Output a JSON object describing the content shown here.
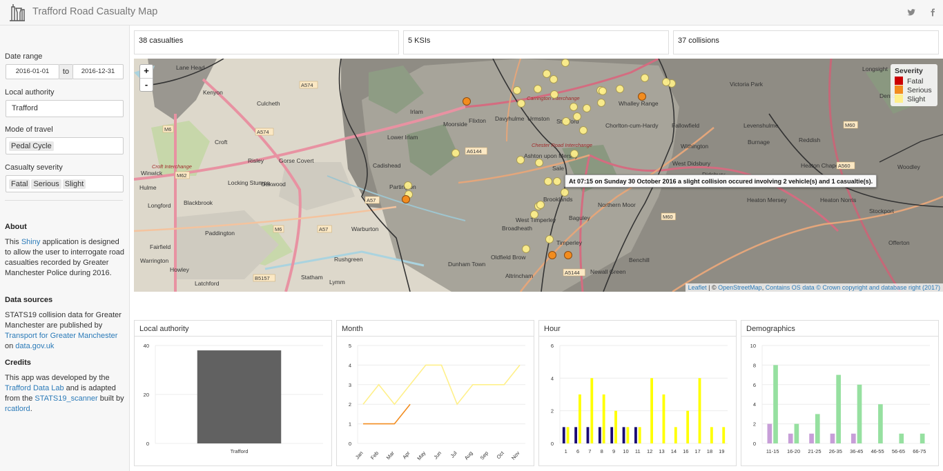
{
  "app": {
    "title": "Trafford Road Casualty Map",
    "logo_icon": "lab-flask-logo-icon",
    "social": [
      "twitter-icon",
      "facebook-icon"
    ]
  },
  "sidebar": {
    "date_range": {
      "label": "Date range",
      "from": "2016-01-01",
      "sep": "to",
      "to": "2016-12-31"
    },
    "local_authority": {
      "label": "Local authority",
      "value": "Trafford"
    },
    "mode": {
      "label": "Mode of travel",
      "value": "Pedal Cycle"
    },
    "severity": {
      "label": "Casualty severity",
      "chips": [
        "Fatal",
        "Serious",
        "Slight"
      ]
    },
    "about": {
      "heading": "About",
      "t1": "This ",
      "link1": "Shiny",
      "t2": " application is designed to allow the user to interrogate road casualties recorded by Greater Manchester Police during 2016."
    },
    "sources": {
      "heading": "Data sources",
      "t1": "STATS19 collision data for Greater Manchester are published by ",
      "link1": "Transport for Greater Manchester",
      "t2": " on ",
      "link2": "data.gov.uk"
    },
    "credits": {
      "heading": "Credits",
      "t1": "This app was developed by the ",
      "link1": "Trafford Data Lab",
      "t2": " and is adapted from the ",
      "link2": "STATS19_scanner",
      "t3": " built by ",
      "link3": "rcatlord",
      "t4": "."
    }
  },
  "stats": {
    "casualties": "38 casualties",
    "ksi": "5 KSIs",
    "collisions": "37 collisions"
  },
  "map": {
    "zoom_in": "+",
    "zoom_out": "-",
    "legend": {
      "title": "Severity",
      "items": [
        {
          "label": "Fatal",
          "color": "#cc0000"
        },
        {
          "label": "Serious",
          "color": "#f28c1e"
        },
        {
          "label": "Slight",
          "color": "#fff08a"
        }
      ]
    },
    "tooltip": "At 07:15 on Sunday 30 October 2016 a slight collision occured involving 2 vehicle(s) and 1 casualtie(s).",
    "attribution": {
      "leaflet": "Leaflet",
      "sep": " | © ",
      "osm": "OpenStreetMap",
      "comma": ", ",
      "os": "Contains OS data © Crown copyright and database right (2017)"
    },
    "place_labels": [
      "Kenyon",
      "Culcheth",
      "Croft",
      "Risley",
      "Gorse Covert",
      "Winwick",
      "Hulme",
      "Locking Stumps",
      "Oakwood",
      "Longford",
      "Blackbrook",
      "Fairfield",
      "Paddington",
      "Warrington",
      "Howley",
      "Latchford",
      "Statham",
      "Lymm",
      "Rushgreen",
      "Warburton",
      "Dunham Town",
      "Oldfield Brow",
      "Altrincham",
      "Cadishead",
      "Partington",
      "Lower Irlam",
      "Irlam",
      "Moorside",
      "Flixton",
      "Davyhulme",
      "Urmston",
      "Stretford",
      "Ashton upon Mersey",
      "Sale",
      "Brooklands",
      "Timperley",
      "West Timperley",
      "Broadheath",
      "Baguley",
      "Northern Moor",
      "Newall Green",
      "Benchill",
      "Chorlton-cum-Hardy",
      "Whalley Range",
      "Fallowfield",
      "Withington",
      "Burnage",
      "Levenshulme",
      "Reddish",
      "West Didsbury",
      "Didsbury",
      "Heaton Chapel",
      "Heaton Mersey",
      "Heaton Norris",
      "Stockport",
      "Offerton",
      "Victoria Park",
      "Denton",
      "Woodley",
      "Longsight",
      "Lane Head",
      "Croft Interchange",
      "Carrington Interchange",
      "Chester Road Interchange"
    ],
    "road_labels": [
      "A574",
      "A574",
      "M62",
      "M6",
      "M60",
      "A6144",
      "A57",
      "A57",
      "M6",
      "A5144",
      "B5157",
      "M60",
      "A560"
    ]
  },
  "charts": {
    "local_authority": {
      "title": "Local authority"
    },
    "month": {
      "title": "Month"
    },
    "hour": {
      "title": "Hour"
    },
    "demographics": {
      "title": "Demographics"
    }
  },
  "chart_data": [
    {
      "type": "bar",
      "title": "Local authority",
      "categories": [
        "Trafford"
      ],
      "values": [
        38
      ],
      "ylim": [
        0,
        40
      ],
      "yticks": [
        0,
        20,
        40
      ],
      "color": "#616161"
    },
    {
      "type": "line",
      "title": "Month",
      "categories": [
        "Jan",
        "Feb",
        "Mar",
        "Apr",
        "May",
        "Jun",
        "Jul",
        "Aug",
        "Sep",
        "Oct",
        "Nov"
      ],
      "ylim": [
        0,
        5
      ],
      "yticks": [
        0,
        1,
        2,
        3,
        4,
        5
      ],
      "series": [
        {
          "color": "#fff08a",
          "values": [
            2,
            3,
            2,
            3,
            4,
            4,
            2,
            3,
            3,
            3,
            4
          ]
        },
        {
          "color": "#f28c1e",
          "values": [
            1,
            1,
            1,
            2,
            null,
            null,
            null,
            null,
            null,
            null,
            null
          ]
        }
      ]
    },
    {
      "type": "bar",
      "title": "Hour",
      "categories": [
        "1",
        "6",
        "7",
        "8",
        "9",
        "10",
        "11",
        "12",
        "13",
        "14",
        "16",
        "17",
        "18",
        "19"
      ],
      "ylim": [
        0,
        6
      ],
      "yticks": [
        0,
        2,
        4,
        6
      ],
      "series": [
        {
          "color": "#1a0a73",
          "values": [
            1,
            1,
            1,
            1,
            1,
            1,
            1,
            0,
            0,
            0,
            0,
            0,
            0,
            0
          ]
        },
        {
          "color": "#ffff00",
          "values": [
            1,
            3,
            4,
            3,
            2,
            1,
            1,
            4,
            3,
            1,
            2,
            4,
            1,
            1
          ]
        }
      ]
    },
    {
      "type": "bar",
      "title": "Demographics",
      "categories": [
        "11-15",
        "16-20",
        "21-25",
        "26-35",
        "36-45",
        "46-55",
        "56-65",
        "66-75"
      ],
      "ylim": [
        0,
        10
      ],
      "yticks": [
        0,
        2,
        4,
        6,
        8,
        10
      ],
      "series": [
        {
          "color": "#c79ed8",
          "values": [
            2,
            1,
            1,
            1,
            1,
            0,
            0,
            0
          ]
        },
        {
          "color": "#96e0a0",
          "values": [
            8,
            2,
            3,
            7,
            6,
            4,
            1,
            1
          ]
        }
      ]
    }
  ]
}
